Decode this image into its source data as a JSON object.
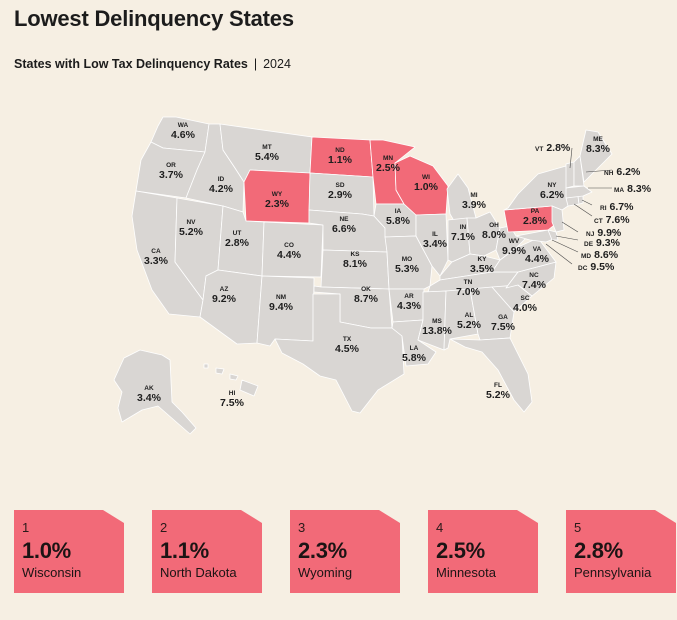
{
  "title": "Lowest Delinquency States",
  "subtitle": {
    "main": "States with Low Tax Delinquency Rates",
    "separator": "|",
    "year": "2024"
  },
  "colors": {
    "background": "#f6efe3",
    "state_default": "#d9d6d3",
    "state_highlight": "#f26a78",
    "border": "#ffffff"
  },
  "states": {
    "WA": "4.6%",
    "OR": "3.7%",
    "CA": "3.3%",
    "NV": "5.2%",
    "ID": "4.2%",
    "MT": "5.4%",
    "WY": "2.3%",
    "UT": "2.8%",
    "AZ": "9.2%",
    "NM": "9.4%",
    "CO": "4.4%",
    "ND": "1.1%",
    "SD": "2.9%",
    "NE": "6.6%",
    "KS": "8.1%",
    "OK": "8.7%",
    "TX": "4.5%",
    "MN": "2.5%",
    "IA": "5.8%",
    "MO": "5.3%",
    "AR": "4.3%",
    "LA": "5.8%",
    "WI": "1.0%",
    "IL": "3.4%",
    "MI": "3.9%",
    "IN": "7.1%",
    "OH": "8.0%",
    "KY": "3.5%",
    "TN": "7.0%",
    "MS": "13.8%",
    "AL": "5.2%",
    "GA": "7.5%",
    "FL": "5.2%",
    "SC": "4.0%",
    "NC": "7.4%",
    "VA": "4.4%",
    "WV": "9.9%",
    "PA": "2.8%",
    "NY": "6.2%",
    "AK": "3.4%",
    "HI": "7.5%",
    "VT": "2.8%",
    "ME": "8.3%",
    "NH": "6.2%",
    "MA": "8.3%",
    "RI": "6.7%",
    "CT": "7.6%",
    "NJ": "9.9%",
    "DE": "9.3%",
    "MD": "8.6%",
    "DC": "9.5%"
  },
  "highlighted": [
    "WI",
    "ND",
    "WY",
    "MN",
    "PA"
  ],
  "cards": [
    {
      "rank": "1",
      "value": "1.0%",
      "name": "Wisconsin"
    },
    {
      "rank": "2",
      "value": "1.1%",
      "name": "North Dakota"
    },
    {
      "rank": "3",
      "value": "2.3%",
      "name": "Wyoming"
    },
    {
      "rank": "4",
      "value": "2.5%",
      "name": "Minnesota"
    },
    {
      "rank": "5",
      "value": "2.8%",
      "name": "Pennsylvania"
    }
  ]
}
